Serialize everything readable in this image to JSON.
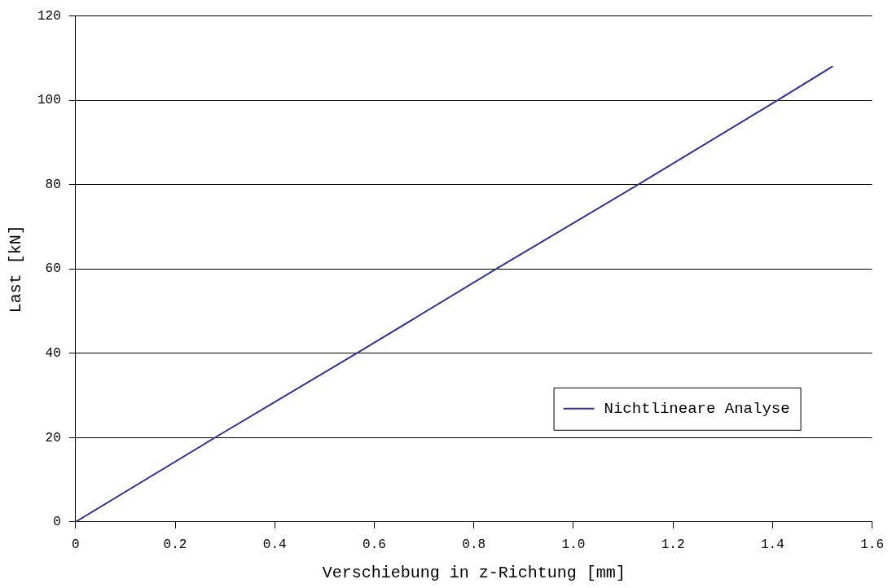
{
  "chart_data": {
    "type": "line",
    "xlabel": "Verschiebung in z-Richtung [mm]",
    "ylabel": "Last [kN]",
    "series": [
      {
        "name": "Nichtlineare Analyse",
        "color": "#333399",
        "x": [
          0,
          0.28,
          0.565,
          0.845,
          1.13,
          1.41,
          1.52
        ],
        "values": [
          0,
          20,
          40,
          60,
          80,
          100,
          108
        ]
      }
    ],
    "xlim": [
      0,
      1.6
    ],
    "xticks": [
      0,
      0.2,
      0.4,
      0.6,
      0.8,
      {
        "value": 1,
        "label": "1.0"
      },
      1.2,
      1.4,
      1.6
    ],
    "ylim": [
      0,
      120
    ],
    "yticks": [
      0,
      20,
      40,
      60,
      80,
      100,
      120
    ],
    "grid": "y",
    "legend": "bottom right",
    "marker": "none",
    "line_style": "solid"
  }
}
